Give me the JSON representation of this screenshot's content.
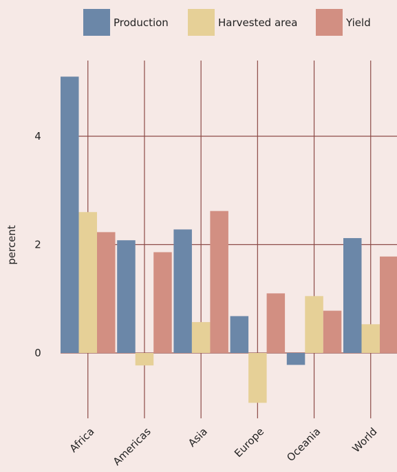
{
  "chart_data": {
    "type": "bar",
    "title": "",
    "xlabel": "",
    "ylabel": "percent",
    "categories": [
      "Africa",
      "Americas",
      "Asia",
      "Europe",
      "Oceania",
      "World"
    ],
    "series": [
      {
        "name": "Production",
        "color": "#6b87a8",
        "values": [
          5.1,
          2.08,
          2.28,
          0.68,
          -0.22,
          2.12
        ]
      },
      {
        "name": "Harvested area",
        "color": "#e6d097",
        "values": [
          2.6,
          -0.23,
          0.57,
          -0.92,
          1.05,
          0.53
        ]
      },
      {
        "name": "Yield",
        "color": "#d28f82",
        "values": [
          2.23,
          1.86,
          2.62,
          1.1,
          0.78,
          1.78
        ]
      }
    ],
    "ylim": [
      -1.1,
      5.6
    ],
    "yticks": [
      0,
      2,
      4
    ],
    "grid": true,
    "legend_position": "top"
  },
  "colors": {
    "background": "#f6e9e6",
    "grid": "#8c4a46"
  }
}
